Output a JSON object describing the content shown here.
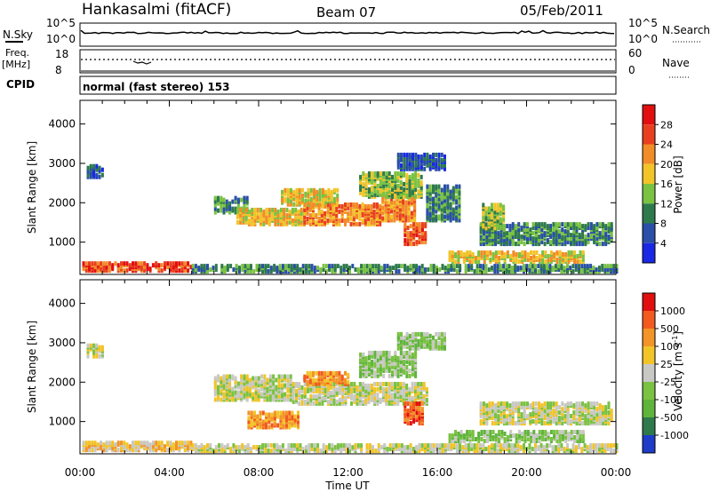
{
  "header": {
    "station": "Hankasalmi (fitACF)",
    "beam": "Beam 07",
    "date": "05/Feb/2011"
  },
  "noise_panel": {
    "left_label": "N.Sky",
    "left_ticks": [
      "10^5",
      "10^0"
    ],
    "right_ticks": [
      "10^5",
      "10^0"
    ],
    "right_label": "N.Search"
  },
  "freq_panel": {
    "left_label_1": "Freq.",
    "left_label_2": "[MHz]",
    "left_ticks": [
      "18",
      "8"
    ],
    "right_ticks": [
      "60",
      "0"
    ],
    "right_label": "Nave"
  },
  "cpid": {
    "label": "CPID",
    "value": "normal (fast stereo) 153"
  },
  "chart_data": [
    {
      "type": "heatmap",
      "quantity": "Power",
      "ylabel": "Slant Range [km]",
      "ylim": [
        180,
        4600
      ],
      "yticks": [
        1000,
        2000,
        3000,
        4000
      ],
      "xlim": [
        0,
        24
      ],
      "colorbar": {
        "label": "Power [dB]",
        "ticks": [
          "4",
          "8",
          "12",
          "16",
          "20",
          "24",
          "28"
        ],
        "colors": [
          "#1a28e6",
          "#2a4fa8",
          "#2e7a4c",
          "#7ac242",
          "#f2c428",
          "#f28c28",
          "#e8401e",
          "#e10f0f"
        ]
      },
      "echo_regions": [
        {
          "t0": 0.1,
          "t1": 5.0,
          "r0": 220,
          "r1": 420,
          "level": 6
        },
        {
          "t0": 5.0,
          "t1": 24.0,
          "r0": 200,
          "r1": 380,
          "level": 2
        },
        {
          "t0": 6.0,
          "t1": 7.5,
          "r0": 1700,
          "r1": 2100,
          "level": 2
        },
        {
          "t0": 7.0,
          "t1": 10.0,
          "r0": 1400,
          "r1": 1800,
          "level": 4
        },
        {
          "t0": 10.0,
          "t1": 13.5,
          "r0": 1400,
          "r1": 1900,
          "level": 5
        },
        {
          "t0": 13.5,
          "t1": 15.0,
          "r0": 1500,
          "r1": 2200,
          "level": 5
        },
        {
          "t0": 14.5,
          "t1": 15.5,
          "r0": 900,
          "r1": 1400,
          "level": 6
        },
        {
          "t0": 9.0,
          "t1": 11.5,
          "r0": 1900,
          "r1": 2300,
          "level": 4
        },
        {
          "t0": 12.5,
          "t1": 15.3,
          "r0": 2100,
          "r1": 2700,
          "level": 3
        },
        {
          "t0": 15.5,
          "t1": 17.0,
          "r0": 1500,
          "r1": 2400,
          "level": 2
        },
        {
          "t0": 17.9,
          "t1": 23.8,
          "r0": 900,
          "r1": 1400,
          "level": 2
        },
        {
          "t0": 18.0,
          "t1": 19.0,
          "r0": 1300,
          "r1": 1900,
          "level": 3
        },
        {
          "t0": 16.5,
          "t1": 22.5,
          "r0": 450,
          "r1": 700,
          "level": 4
        },
        {
          "t0": 0.3,
          "t1": 1.0,
          "r0": 2600,
          "r1": 2900,
          "level": 1
        },
        {
          "t0": 14.2,
          "t1": 16.3,
          "r0": 2800,
          "r1": 3200,
          "level": 1
        }
      ]
    },
    {
      "type": "heatmap",
      "quantity": "Velocity",
      "ylabel": "Slant Range [km]",
      "ylim": [
        180,
        4600
      ],
      "yticks": [
        1000,
        2000,
        3000,
        4000
      ],
      "xlim": [
        0,
        24
      ],
      "xticks": [
        "00:00",
        "04:00",
        "08:00",
        "12:00",
        "16:00",
        "20:00",
        "00:00"
      ],
      "xlabel": "Time UT",
      "colorbar": {
        "label": "Velocity [m s",
        "label_exp": "-1",
        "label_end": "]",
        "ticks": [
          "1000",
          "500",
          "100",
          "25",
          "-25",
          "-100",
          "-500",
          "-1000"
        ],
        "colors": [
          "#1e3cc8",
          "#2e7a4c",
          "#5fb43c",
          "#7ac242",
          "#c8c8c4",
          "#f2c428",
          "#f29428",
          "#f25a1e",
          "#e10f0f"
        ]
      },
      "echo_regions": [
        {
          "t0": 0.1,
          "t1": 5.0,
          "r0": 220,
          "r1": 420,
          "level": 5
        },
        {
          "t0": 5.0,
          "t1": 24.0,
          "r0": 200,
          "r1": 380,
          "level": 4
        },
        {
          "t0": 6.0,
          "t1": 9.5,
          "r0": 1500,
          "r1": 2100,
          "level": 4
        },
        {
          "t0": 9.5,
          "t1": 15.5,
          "r0": 1400,
          "r1": 1900,
          "level": 4
        },
        {
          "t0": 7.5,
          "t1": 9.8,
          "r0": 800,
          "r1": 1200,
          "level": 6
        },
        {
          "t0": 14.5,
          "t1": 15.4,
          "r0": 900,
          "r1": 1400,
          "level": 7
        },
        {
          "t0": 10.0,
          "t1": 12.0,
          "r0": 1900,
          "r1": 2200,
          "level": 6
        },
        {
          "t0": 12.5,
          "t1": 15.0,
          "r0": 2100,
          "r1": 2700,
          "level": 3
        },
        {
          "t0": 17.9,
          "t1": 23.8,
          "r0": 900,
          "r1": 1400,
          "level": 4
        },
        {
          "t0": 16.5,
          "t1": 22.5,
          "r0": 450,
          "r1": 700,
          "level": 3
        },
        {
          "t0": 0.3,
          "t1": 1.0,
          "r0": 2600,
          "r1": 2900,
          "level": 4
        },
        {
          "t0": 14.2,
          "t1": 16.3,
          "r0": 2800,
          "r1": 3200,
          "level": 3
        }
      ]
    }
  ]
}
